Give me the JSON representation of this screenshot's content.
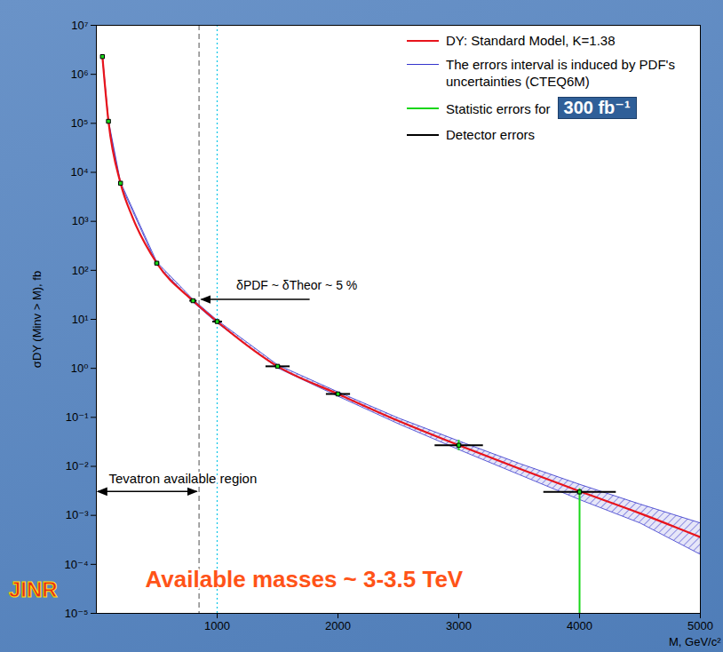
{
  "chart_data": {
    "type": "line",
    "x_label": "M, GeV/c²",
    "y_label": "σDY (Minv > M), fb",
    "log": "y",
    "grid": false,
    "legend": "top-right",
    "xlim": [
      0,
      5000
    ],
    "ylim": [
      1e-05,
      10000000.0
    ],
    "xticks": [
      1000,
      2000,
      3000,
      4000,
      5000
    ],
    "yticks": [
      {
        "value": 1e-05,
        "label": "10⁻⁵"
      },
      {
        "value": 0.0001,
        "label": "10⁻⁴"
      },
      {
        "value": 0.001,
        "label": "10⁻³"
      },
      {
        "value": 0.01,
        "label": "10⁻²"
      },
      {
        "value": 0.1,
        "label": "10⁻¹"
      },
      {
        "value": 1,
        "label": "10⁰"
      },
      {
        "value": 10,
        "label": "10¹"
      },
      {
        "value": 100,
        "label": "10²"
      },
      {
        "value": 1000,
        "label": "10³"
      },
      {
        "value": 10000,
        "label": "10⁴"
      },
      {
        "value": 100000,
        "label": "10⁵"
      },
      {
        "value": 1000000,
        "label": "10⁶"
      },
      {
        "value": 10000000,
        "label": "10⁷"
      }
    ],
    "series": [
      {
        "name": "The errors interval is induced by PDF's uncertainties (CTEQ6M)",
        "type": "area",
        "color": "#3434cc",
        "x": [
          50,
          100,
          200,
          500,
          800,
          1000,
          1500,
          2000,
          2500,
          3000,
          3500,
          4000,
          4500,
          5000
        ],
        "low": [
          2200000,
          105000,
          5700,
          132,
          22.5,
          8.4,
          1.02,
          0.27,
          0.074,
          0.022,
          0.0068,
          0.0021,
          0.0007,
          0.00016
        ],
        "high": [
          2400000,
          115000,
          6300,
          148,
          25.5,
          9.6,
          1.18,
          0.33,
          0.097,
          0.033,
          0.0115,
          0.0043,
          0.0017,
          0.0007
        ]
      },
      {
        "name": "DY: Standard Model, K=1.38",
        "type": "line",
        "color": "#e8141c",
        "x": [
          50,
          100,
          200,
          300,
          500,
          800,
          1000,
          1500,
          2000,
          2500,
          3000,
          3500,
          4000,
          4500,
          5000
        ],
        "values": [
          2300000,
          110000,
          6000,
          1200,
          140,
          24,
          9,
          1.1,
          0.3,
          0.085,
          0.027,
          0.009,
          0.0031,
          0.0011,
          0.00036
        ]
      },
      {
        "name": "Statistic errors for",
        "type": "errorbar",
        "color": "#19d619",
        "x": [
          1500,
          2000,
          3000,
          4000
        ],
        "low": [
          1.05,
          0.28,
          0.021,
          5e-06
        ],
        "high": [
          1.15,
          0.32,
          0.034,
          0.0035
        ]
      },
      {
        "name": "Detector errors",
        "type": "scatter",
        "color": "#000000",
        "marker": "square",
        "x": [
          50,
          100,
          200,
          500,
          800,
          1000,
          1500,
          2000,
          3000,
          4000
        ],
        "values": [
          2300000,
          110000,
          6000,
          140,
          24,
          9,
          1.1,
          0.3,
          0.027,
          0.003
        ],
        "x_low": [
          45,
          95,
          190,
          480,
          770,
          960,
          1400,
          1900,
          2800,
          3700
        ],
        "x_high": [
          55,
          105,
          210,
          520,
          830,
          1040,
          1600,
          2100,
          3200,
          4300
        ]
      }
    ],
    "luminosity_label": "300 fb⁻¹",
    "reference_lines": [
      {
        "x": 850,
        "color": "#777777",
        "line_style": "dashed"
      },
      {
        "x": 1000,
        "color": "#18c8e8",
        "line_style": "dotted"
      }
    ],
    "annotations": [
      {
        "text": "δPDF ~ δTheor ~ 5 %",
        "x": 850,
        "y": 25,
        "arrow": "left"
      },
      {
        "text": "Tevatron available region",
        "x": [
          0,
          850
        ],
        "y": 0.003,
        "arrow": "both"
      },
      {
        "text": "Available masses ~ 3-3.5 TeV",
        "color": "#ff5318"
      }
    ],
    "logo_text": {
      "text": "JINR",
      "color": "#e8261c"
    }
  }
}
